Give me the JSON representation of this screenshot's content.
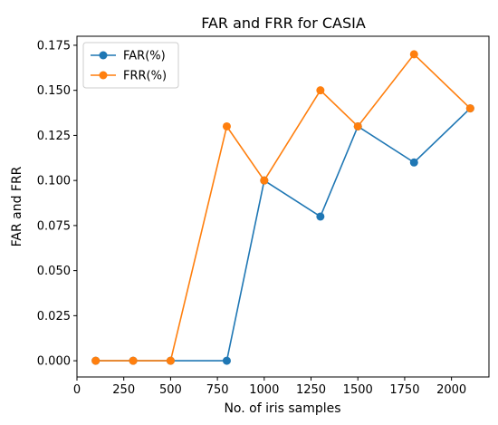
{
  "chart_data": {
    "type": "line",
    "title": "FAR and FRR for CASIA",
    "xlabel": "No. of iris samples",
    "ylabel": "FAR and FRR",
    "xlim": [
      0,
      2200
    ],
    "ylim": [
      -0.009,
      0.18
    ],
    "xticks": [
      0,
      250,
      500,
      750,
      1000,
      1250,
      1500,
      1750,
      2000
    ],
    "xtick_labels": [
      "0",
      "250",
      "500",
      "750",
      "1000",
      "1250",
      "1500",
      "1750",
      "2000"
    ],
    "yticks": [
      0.0,
      0.025,
      0.05,
      0.075,
      0.1,
      0.125,
      0.15,
      0.175
    ],
    "ytick_labels": [
      "0.000",
      "0.025",
      "0.050",
      "0.075",
      "0.100",
      "0.125",
      "0.150",
      "0.175"
    ],
    "grid": false,
    "legend_position": "top-left",
    "x": [
      100,
      300,
      500,
      800,
      1000,
      1300,
      1500,
      1800,
      2100
    ],
    "series": [
      {
        "name": "FAR(%)",
        "color": "#1f77b4",
        "values": [
          0.0,
          0.0,
          0.0,
          0.0,
          0.1,
          0.08,
          0.13,
          0.11,
          0.14
        ]
      },
      {
        "name": "FRR(%)",
        "color": "#ff7f0e",
        "values": [
          0.0,
          0.0,
          0.0,
          0.13,
          0.1,
          0.15,
          0.13,
          0.17,
          0.14
        ]
      }
    ]
  }
}
